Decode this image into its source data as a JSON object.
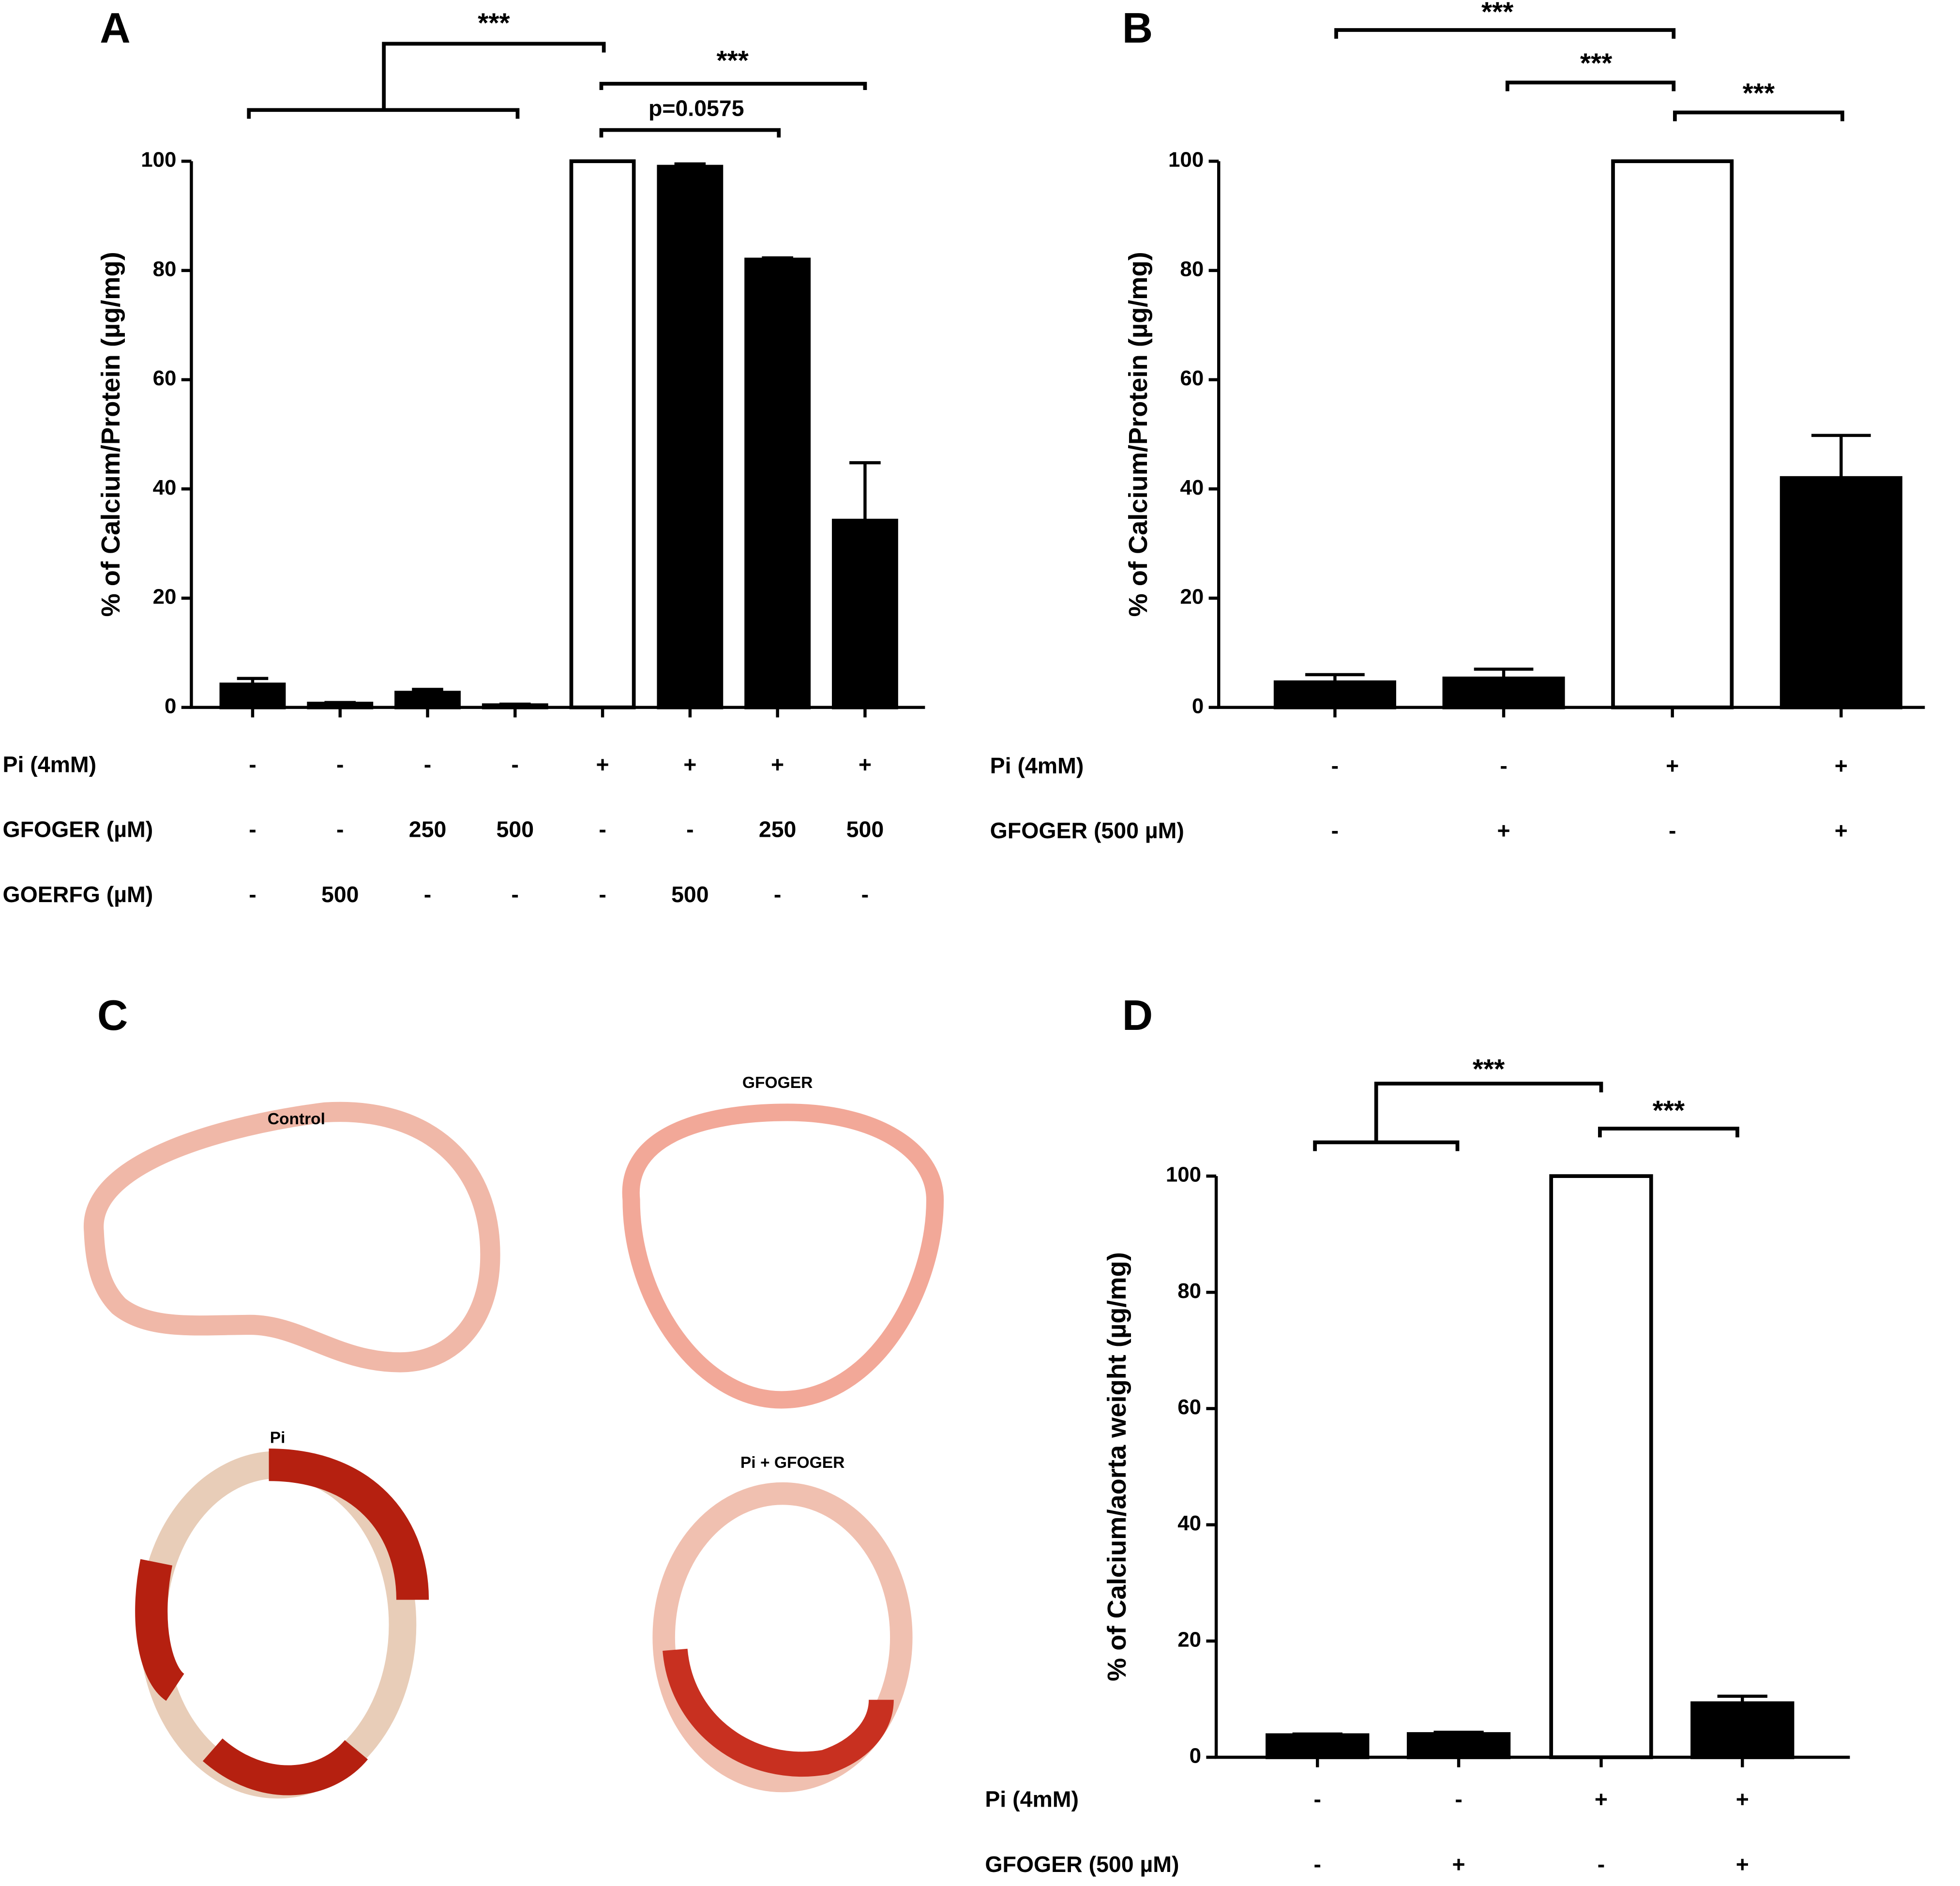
{
  "chart_data": [
    {
      "type": "bar",
      "panel": "A",
      "ylabel": "% of Calcium/Protein (µg/mg)",
      "values": [
        4.2,
        0.7,
        2.7,
        0.4,
        100,
        99,
        82,
        34.2
      ],
      "errors": [
        1.1,
        0.2,
        0.6,
        0.2,
        0,
        0.5,
        0.3,
        10.6
      ],
      "colors": [
        "#000000",
        "#000000",
        "#000000",
        "#000000",
        "#ffffff",
        "#000000",
        "#000000",
        "#000000"
      ],
      "ylim": [
        0,
        100
      ],
      "yticks": [
        0,
        20,
        40,
        60,
        80,
        100
      ],
      "conditions": [
        {
          "name": "Pi (4mM)",
          "values": [
            "-",
            "-",
            "-",
            "-",
            "+",
            "+",
            "+",
            "+"
          ]
        },
        {
          "name": "GFOGER (µM)",
          "values": [
            "-",
            "-",
            "250",
            "500",
            "-",
            "-",
            "250",
            "500"
          ]
        },
        {
          "name": "GOERFG (µM)",
          "values": [
            "-",
            "500",
            "-",
            "-",
            "-",
            "500",
            "-",
            "-"
          ]
        }
      ],
      "annotations": [
        "***",
        "***",
        "p=0.0575"
      ]
    },
    {
      "type": "bar",
      "panel": "B",
      "ylabel": "% of Calcium/Protein (µg/mg)",
      "values": [
        4.6,
        5.3,
        100,
        42
      ],
      "errors": [
        1.4,
        1.7,
        0,
        7.8
      ],
      "colors": [
        "#000000",
        "#000000",
        "#ffffff",
        "#000000"
      ],
      "ylim": [
        0,
        100
      ],
      "yticks": [
        0,
        20,
        40,
        60,
        80,
        100
      ],
      "conditions": [
        {
          "name": "Pi (4mM)",
          "values": [
            "-",
            "-",
            "+",
            "+"
          ]
        },
        {
          "name": "GFOGER (500 µM)",
          "values": [
            "-",
            "+",
            "-",
            "+"
          ]
        }
      ],
      "annotations": [
        "***",
        "***",
        "***"
      ]
    },
    {
      "type": "bar",
      "panel": "D",
      "ylabel": "% of Calcium/aorta weight (µg/mg)",
      "values": [
        3.8,
        4.0,
        100,
        9.3
      ],
      "errors": [
        0.2,
        0.3,
        0,
        1.2
      ],
      "colors": [
        "#000000",
        "#000000",
        "#ffffff",
        "#000000"
      ],
      "ylim": [
        0,
        100
      ],
      "yticks": [
        0,
        20,
        40,
        60,
        80,
        100
      ],
      "conditions": [
        {
          "name": "Pi (4mM)",
          "values": [
            "-",
            "-",
            "+",
            "+"
          ]
        },
        {
          "name": "GFOGER (500 µM)",
          "values": [
            "-",
            "+",
            "-",
            "+"
          ]
        }
      ],
      "annotations": [
        "***",
        "***"
      ]
    }
  ],
  "images": {
    "panel": "C",
    "labels": [
      "Control",
      "GFOGER",
      "Pi",
      "Pi + GFOGER"
    ]
  }
}
